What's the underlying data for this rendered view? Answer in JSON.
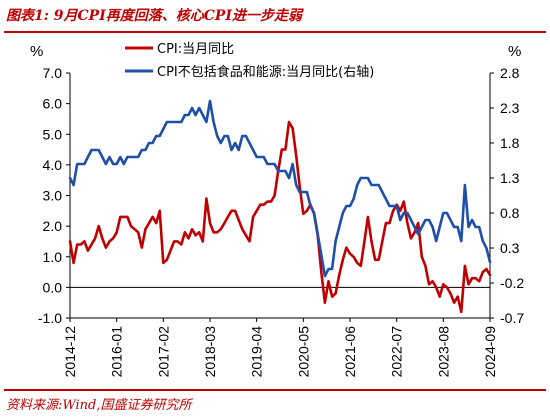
{
  "title": "图表1:  9月CPI再度回落、核心CPI进一步走弱",
  "source": "资料来源:Wind,国盛证券研究所",
  "colors": {
    "brand": "#c00000",
    "cpi": "#c00000",
    "core": "#1f4fa8"
  },
  "chart_data": {
    "type": "line",
    "left_axis": {
      "unit": "%",
      "ylim": [
        -1.0,
        7.0
      ],
      "ticks": [
        "7.0",
        "6.0",
        "5.0",
        "4.0",
        "3.0",
        "2.0",
        "1.0",
        "0.0",
        "-1.0"
      ]
    },
    "right_axis": {
      "unit": "%",
      "ylim": [
        -0.7,
        2.8
      ],
      "ticks": [
        "2.8",
        "2.3",
        "1.8",
        "1.3",
        "0.8",
        "0.3",
        "-0.2",
        "-0.7"
      ]
    },
    "x_ticks": [
      "2014-12",
      "2016-01",
      "2017-02",
      "2018-03",
      "2019-04",
      "2020-05",
      "2021-06",
      "2022-07",
      "2023-08",
      "2024-09"
    ],
    "x_start": "2014-12",
    "legend_position": "top-center",
    "series": [
      {
        "name": "CPI:当月同比",
        "axis": "left",
        "color": "#c00000",
        "values": [
          1.5,
          0.8,
          1.4,
          1.4,
          1.5,
          1.2,
          1.4,
          1.6,
          2.0,
          1.6,
          1.3,
          1.5,
          1.6,
          1.8,
          2.3,
          2.3,
          2.3,
          2.0,
          1.9,
          1.8,
          1.3,
          1.9,
          2.1,
          2.3,
          2.1,
          2.5,
          0.8,
          0.9,
          1.2,
          1.5,
          1.5,
          1.4,
          1.8,
          1.6,
          1.9,
          1.7,
          1.8,
          1.5,
          2.9,
          2.1,
          1.8,
          1.8,
          1.9,
          2.1,
          2.3,
          2.5,
          2.5,
          2.2,
          1.9,
          1.7,
          1.5,
          2.3,
          2.5,
          2.7,
          2.7,
          2.8,
          2.8,
          3.0,
          3.8,
          4.5,
          4.5,
          5.4,
          5.2,
          4.3,
          3.3,
          2.4,
          2.5,
          2.7,
          2.4,
          1.7,
          0.5,
          -0.5,
          0.2,
          -0.3,
          -0.2,
          0.4,
          0.9,
          1.3,
          1.1,
          1.0,
          0.8,
          0.7,
          1.5,
          2.3,
          1.5,
          0.9,
          0.9,
          1.5,
          2.1,
          2.1,
          2.5,
          2.7,
          2.5,
          2.8,
          2.1,
          1.6,
          1.8,
          2.1,
          1.0,
          0.7,
          0.1,
          0.2,
          0.0,
          -0.3,
          0.1,
          0.0,
          -0.2,
          -0.5,
          -0.3,
          -0.8,
          0.7,
          0.1,
          0.3,
          0.3,
          0.2,
          0.5,
          0.6,
          0.4
        ]
      },
      {
        "name": "CPI不包括食品和能源:当月同比(右轴)",
        "axis": "right",
        "color": "#1f4fa8",
        "values": [
          1.3,
          1.2,
          1.5,
          1.5,
          1.5,
          1.6,
          1.7,
          1.7,
          1.7,
          1.6,
          1.5,
          1.6,
          1.5,
          1.5,
          1.6,
          1.5,
          1.6,
          1.6,
          1.6,
          1.6,
          1.7,
          1.7,
          1.8,
          1.8,
          1.9,
          1.9,
          2.0,
          2.1,
          2.1,
          2.1,
          2.1,
          2.1,
          2.2,
          2.2,
          2.3,
          2.2,
          2.3,
          2.2,
          2.1,
          2.4,
          2.1,
          1.9,
          1.8,
          1.9,
          1.9,
          1.7,
          1.8,
          1.7,
          1.9,
          1.9,
          1.8,
          1.7,
          1.6,
          1.6,
          1.6,
          1.5,
          1.5,
          1.5,
          1.4,
          1.4,
          1.4,
          1.3,
          1.5,
          1.2,
          1.1,
          1.1,
          1.1,
          0.9,
          0.8,
          0.5,
          0.2,
          -0.1,
          0.0,
          0.0,
          0.4,
          0.6,
          0.8,
          0.9,
          0.9,
          1.0,
          1.2,
          1.3,
          1.3,
          1.3,
          1.2,
          1.2,
          1.2,
          1.1,
          1.0,
          0.9,
          0.9,
          0.9,
          0.7,
          0.8,
          0.8,
          0.7,
          0.6,
          0.5,
          0.6,
          0.7,
          0.7,
          0.6,
          0.4,
          0.6,
          0.8,
          0.8,
          0.7,
          0.6,
          0.6,
          0.4,
          1.2,
          0.6,
          0.7,
          0.6,
          0.6,
          0.4,
          0.3,
          0.1
        ]
      }
    ]
  }
}
